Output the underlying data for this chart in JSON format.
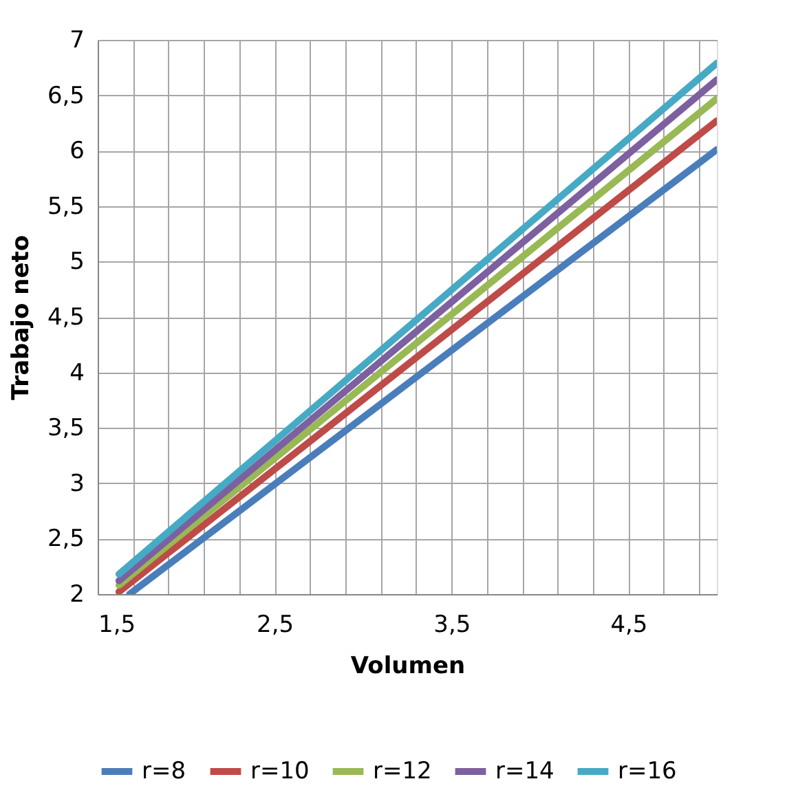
{
  "chart_data": {
    "type": "line",
    "xlabel": "Volumen",
    "ylabel": "Trabajo neto",
    "series": [
      {
        "name": "r=8",
        "color": "#4a7ebb",
        "x": [
          1.68,
          5.0
        ],
        "values": [
          2.0,
          6.01
        ]
      },
      {
        "name": "r=10",
        "color": "#be4b48",
        "x": [
          1.62,
          5.0
        ],
        "values": [
          2.02,
          6.27
        ]
      },
      {
        "name": "r=12",
        "color": "#98b954",
        "x": [
          1.62,
          5.0
        ],
        "values": [
          2.08,
          6.47
        ]
      },
      {
        "name": "r=14",
        "color": "#7d60a0",
        "x": [
          1.62,
          5.0
        ],
        "values": [
          2.12,
          6.64
        ]
      },
      {
        "name": "r=16",
        "color": "#46aac5",
        "x": [
          1.62,
          5.0
        ],
        "values": [
          2.18,
          6.79
        ]
      }
    ],
    "xlim": [
      1.5,
      5.0
    ],
    "xticks": [
      {
        "value": 1.5,
        "label": "1,5"
      },
      {
        "value": 1.7,
        "label": null
      },
      {
        "value": 1.9,
        "label": null
      },
      {
        "value": 2.1,
        "label": null
      },
      {
        "value": 2.3,
        "label": null
      },
      {
        "value": 2.5,
        "label": "2,5"
      },
      {
        "value": 2.7,
        "label": null
      },
      {
        "value": 2.9,
        "label": null
      },
      {
        "value": 3.1,
        "label": null
      },
      {
        "value": 3.3,
        "label": null
      },
      {
        "value": 3.5,
        "label": "3,5"
      },
      {
        "value": 3.7,
        "label": null
      },
      {
        "value": 3.9,
        "label": null
      },
      {
        "value": 4.1,
        "label": null
      },
      {
        "value": 4.3,
        "label": null
      },
      {
        "value": 4.5,
        "label": "4,5"
      },
      {
        "value": 4.7,
        "label": null
      },
      {
        "value": 4.9,
        "label": null
      }
    ],
    "ylim": [
      2,
      7
    ],
    "yticks": [
      2,
      {
        "value": 2.5,
        "label": "2,5"
      },
      3,
      {
        "value": 3.5,
        "label": "3,5"
      },
      4,
      {
        "value": 4.5,
        "label": "4,5"
      },
      5,
      {
        "value": 5.5,
        "label": "5,5"
      },
      6,
      {
        "value": 6.5,
        "label": "6,5"
      },
      7
    ],
    "grid": true,
    "legend": "bottom",
    "marker": "none",
    "line_style": "solid"
  }
}
